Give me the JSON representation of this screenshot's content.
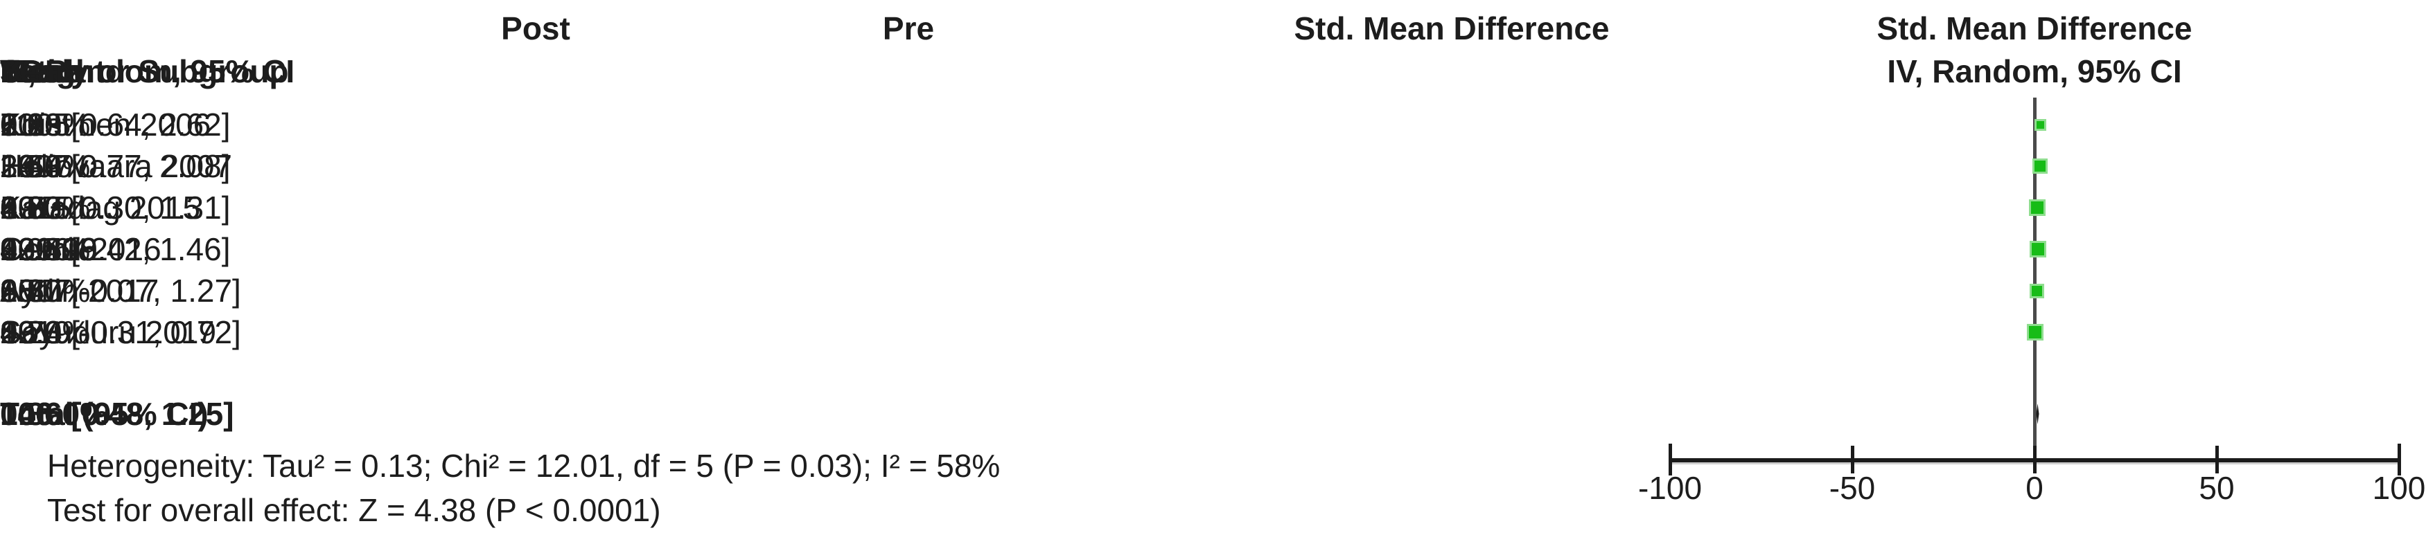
{
  "table": {
    "group_headers": {
      "post": "Post",
      "pre": "Pre",
      "smd": "Std. Mean Difference"
    },
    "columns": {
      "study": "Study or Subgroup",
      "post_mean": "Mean",
      "post_sd": "SD",
      "post_total": "Total",
      "pre_mean": "Mean",
      "pre_sd": "SD",
      "pre_total": "Total",
      "weight": "Weight",
      "iv": "IV, Random, 95% CI",
      "year": "Year"
    },
    "rows": [
      {
        "study": "Koistinen 2006",
        "post_mean": "7.1",
        "post_sd": "1.2",
        "post_total": "11",
        "pre_mean": "5.3",
        "pre_sd": "0.9",
        "pre_total": "11",
        "weight": "10.0%",
        "smd_ci": "1.63 [0.64, 2.62]",
        "year": "2005"
      },
      {
        "study": "Heliövaara 2007",
        "post_mean": "29.4",
        "post_sd": "3.6",
        "post_total": "23",
        "pre_mean": "24.9",
        "pre_sd": "2.5",
        "pre_total": "23",
        "weight": "16.0%",
        "smd_ci": "1.43 [0.77, 2.08]",
        "year": "2007"
      },
      {
        "study": "Karadag 2015",
        "post_mean": "6.73",
        "post_sd": "3.6",
        "post_total": "33",
        "pre_mean": "4.27",
        "pre_sd": "2.3",
        "pre_total": "33",
        "weight": "19.7%",
        "smd_ci": "0.80 [0.30, 1.31]",
        "year": "2015"
      },
      {
        "study": "Cemil 2016",
        "post_mean": "409.18",
        "post_sd": "409.09",
        "post_total": "32",
        "pre_mean": "93.59",
        "pre_sd": "230.96",
        "pre_total": "32",
        "weight": "19.3%",
        "smd_ci": "0.94 [0.42, 1.46]",
        "year": "2016"
      },
      {
        "study": "Aydin 2017",
        "post_mean": "8.7",
        "post_sd": "3.4",
        "post_total": "18",
        "pre_mean": "6.5",
        "pre_sd": "3.8",
        "pre_total": "18",
        "weight": "15.7%",
        "smd_ci": "0.60 [-0.07, 1.27]",
        "year": "2017"
      },
      {
        "study": "Soyuduru 2019",
        "post_mean": "13.3",
        "post_sd": "4.7",
        "post_total": "29",
        "pre_mean": "12.4",
        "pre_sd": "4",
        "pre_total": "29",
        "weight": "19.3%",
        "smd_ci": "0.20 [-0.31, 0.72]",
        "year": "2019"
      }
    ],
    "total_row": {
      "label": "Total (95% CI)",
      "post_total": "146",
      "pre_total": "146",
      "weight": "100.0%",
      "smd_ci": "0.86 [0.48, 1.25]"
    },
    "footer": {
      "heterogeneity": "Heterogeneity: Tau² = 0.13; Chi² = 12.01, df = 5 (P = 0.03); I² = 58%",
      "overall_effect": "Test for overall effect: Z = 4.38 (P < 0.0001)"
    }
  },
  "plot": {
    "header_line1": "Std. Mean Difference",
    "header_line2": "IV, Random, 95% CI"
  },
  "chart_data": {
    "type": "scatter",
    "subtype": "forest-plot",
    "title": "Std. Mean Difference",
    "effect_measure": "IV, Random, 95% CI",
    "xlim": [
      -100,
      100
    ],
    "x_ticks": [
      -100,
      -50,
      0,
      50,
      100
    ],
    "grid": false,
    "studies": [
      {
        "name": "Koistinen 2006",
        "smd": 1.63,
        "ci_low": 0.64,
        "ci_high": 2.62,
        "weight_pct": 10.0,
        "year": 2005
      },
      {
        "name": "Heliövaara 2007",
        "smd": 1.43,
        "ci_low": 0.77,
        "ci_high": 2.08,
        "weight_pct": 16.0,
        "year": 2007
      },
      {
        "name": "Karadag 2015",
        "smd": 0.8,
        "ci_low": 0.3,
        "ci_high": 1.31,
        "weight_pct": 19.7,
        "year": 2015
      },
      {
        "name": "Cemil 2016",
        "smd": 0.94,
        "ci_low": 0.42,
        "ci_high": 1.46,
        "weight_pct": 19.3,
        "year": 2016
      },
      {
        "name": "Aydin 2017",
        "smd": 0.6,
        "ci_low": -0.07,
        "ci_high": 1.27,
        "weight_pct": 15.7,
        "year": 2017
      },
      {
        "name": "Soyuduru 2019",
        "smd": 0.2,
        "ci_low": -0.31,
        "ci_high": 0.72,
        "weight_pct": 19.3,
        "year": 2019
      }
    ],
    "total": {
      "label": "Total (95% CI)",
      "smd": 0.86,
      "ci_low": 0.48,
      "ci_high": 1.25,
      "weight_pct": 100.0
    },
    "marker_color": "#17BC17",
    "marker_halo_color": "#8FDE8F",
    "zero_line_color": "#4a4a4a",
    "axis_color": "#1b1b1b"
  }
}
